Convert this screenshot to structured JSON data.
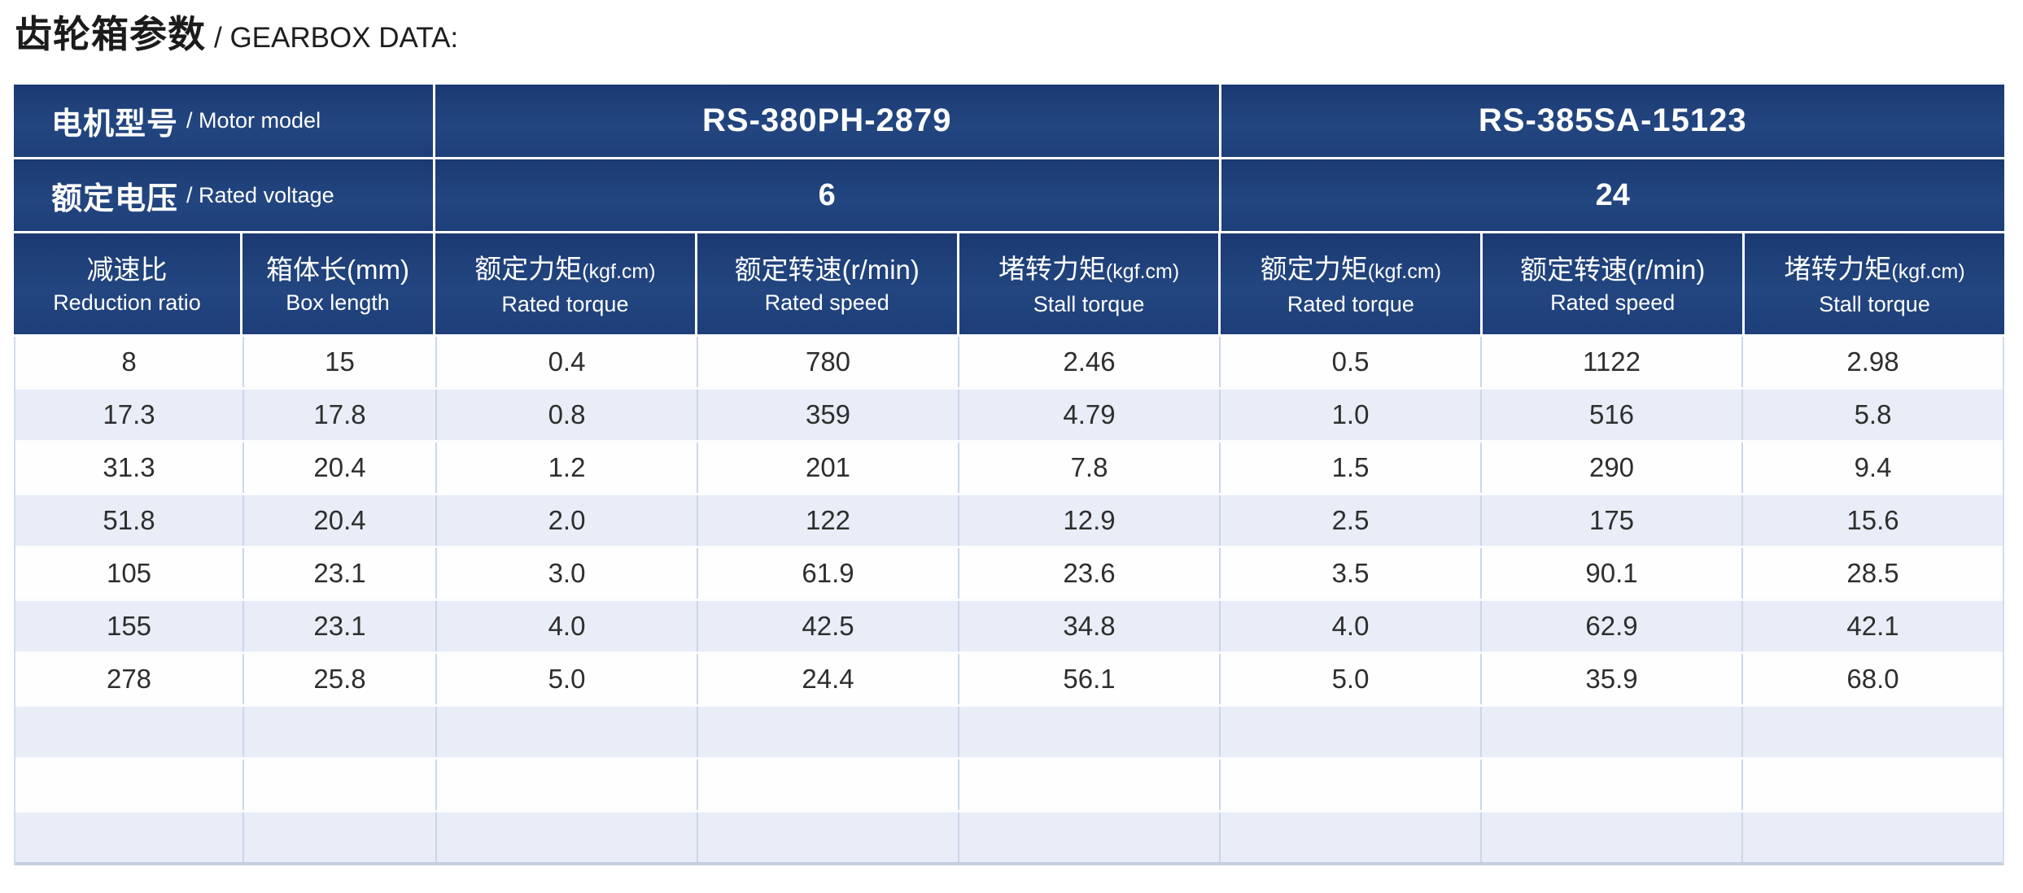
{
  "title": {
    "zh": "齿轮箱参数",
    "en": "/ GEARBOX DATA:"
  },
  "table": {
    "motor_row": {
      "label_zh": "电机型号",
      "label_en": "/ Motor model",
      "models": [
        "RS-380PH-2879",
        "RS-385SA-15123"
      ]
    },
    "voltage_row": {
      "label_zh": "额定电压",
      "label_en": "/ Rated voltage",
      "values": [
        "6",
        "24"
      ]
    },
    "columns": [
      {
        "zh": "减速比",
        "unit": "",
        "en": "Reduction ratio"
      },
      {
        "zh": "箱体长(mm)",
        "unit": "",
        "en": "Box length"
      },
      {
        "zh": "额定力矩",
        "unit": "(kgf.cm)",
        "en": "Rated torque"
      },
      {
        "zh": "额定转速(r/min)",
        "unit": "",
        "en": "Rated speed"
      },
      {
        "zh": "堵转力矩",
        "unit": "(kgf.cm)",
        "en": "Stall torque"
      },
      {
        "zh": "额定力矩",
        "unit": "(kgf.cm)",
        "en": "Rated torque"
      },
      {
        "zh": "额定转速(r/min)",
        "unit": "",
        "en": "Rated speed"
      },
      {
        "zh": "堵转力矩",
        "unit": "(kgf.cm)",
        "en": "Stall torque"
      }
    ],
    "rows": [
      [
        "8",
        "15",
        "0.4",
        "780",
        "2.46",
        "0.5",
        "1122",
        "2.98"
      ],
      [
        "17.3",
        "17.8",
        "0.8",
        "359",
        "4.79",
        "1.0",
        "516",
        "5.8"
      ],
      [
        "31.3",
        "20.4",
        "1.2",
        "201",
        "7.8",
        "1.5",
        "290",
        "9.4"
      ],
      [
        "51.8",
        "20.4",
        "2.0",
        "122",
        "12.9",
        "2.5",
        "175",
        "15.6"
      ],
      [
        "105",
        "23.1",
        "3.0",
        "61.9",
        "23.6",
        "3.5",
        "90.1",
        "28.5"
      ],
      [
        "155",
        "23.1",
        "4.0",
        "42.5",
        "34.8",
        "4.0",
        "62.9",
        "42.1"
      ],
      [
        "278",
        "25.8",
        "5.0",
        "24.4",
        "56.1",
        "5.0",
        "35.9",
        "68.0"
      ],
      [
        "",
        "",
        "",
        "",
        "",
        "",
        "",
        ""
      ],
      [
        "",
        "",
        "",
        "",
        "",
        "",
        "",
        ""
      ],
      [
        "",
        "",
        "",
        "",
        "",
        "",
        "",
        ""
      ]
    ]
  },
  "colors": {
    "header_navy": "#1d3e79",
    "row_alt": "#e8edf7",
    "divider": "#ccd6e9",
    "data_text": "#2e2e2e"
  },
  "chart_data": {
    "type": "table",
    "title": "齿轮箱参数 / GEARBOX DATA:",
    "groups": [
      {
        "motor_model": "RS-380PH-2879",
        "rated_voltage": 6,
        "rows": [
          {
            "reduction_ratio": 8,
            "box_length_mm": 15,
            "rated_torque_kgfcm": 0.4,
            "rated_speed_rpm": 780,
            "stall_torque_kgfcm": 2.46
          },
          {
            "reduction_ratio": 17.3,
            "box_length_mm": 17.8,
            "rated_torque_kgfcm": 0.8,
            "rated_speed_rpm": 359,
            "stall_torque_kgfcm": 4.79
          },
          {
            "reduction_ratio": 31.3,
            "box_length_mm": 20.4,
            "rated_torque_kgfcm": 1.2,
            "rated_speed_rpm": 201,
            "stall_torque_kgfcm": 7.8
          },
          {
            "reduction_ratio": 51.8,
            "box_length_mm": 20.4,
            "rated_torque_kgfcm": 2.0,
            "rated_speed_rpm": 122,
            "stall_torque_kgfcm": 12.9
          },
          {
            "reduction_ratio": 105,
            "box_length_mm": 23.1,
            "rated_torque_kgfcm": 3.0,
            "rated_speed_rpm": 61.9,
            "stall_torque_kgfcm": 23.6
          },
          {
            "reduction_ratio": 155,
            "box_length_mm": 23.1,
            "rated_torque_kgfcm": 4.0,
            "rated_speed_rpm": 42.5,
            "stall_torque_kgfcm": 34.8
          },
          {
            "reduction_ratio": 278,
            "box_length_mm": 25.8,
            "rated_torque_kgfcm": 5.0,
            "rated_speed_rpm": 24.4,
            "stall_torque_kgfcm": 56.1
          }
        ]
      },
      {
        "motor_model": "RS-385SA-15123",
        "rated_voltage": 24,
        "rows": [
          {
            "reduction_ratio": 8,
            "box_length_mm": 15,
            "rated_torque_kgfcm": 0.5,
            "rated_speed_rpm": 1122,
            "stall_torque_kgfcm": 2.98
          },
          {
            "reduction_ratio": 17.3,
            "box_length_mm": 17.8,
            "rated_torque_kgfcm": 1.0,
            "rated_speed_rpm": 516,
            "stall_torque_kgfcm": 5.8
          },
          {
            "reduction_ratio": 31.3,
            "box_length_mm": 20.4,
            "rated_torque_kgfcm": 1.5,
            "rated_speed_rpm": 290,
            "stall_torque_kgfcm": 9.4
          },
          {
            "reduction_ratio": 51.8,
            "box_length_mm": 20.4,
            "rated_torque_kgfcm": 2.5,
            "rated_speed_rpm": 175,
            "stall_torque_kgfcm": 15.6
          },
          {
            "reduction_ratio": 105,
            "box_length_mm": 23.1,
            "rated_torque_kgfcm": 3.5,
            "rated_speed_rpm": 90.1,
            "stall_torque_kgfcm": 28.5
          },
          {
            "reduction_ratio": 155,
            "box_length_mm": 23.1,
            "rated_torque_kgfcm": 4.0,
            "rated_speed_rpm": 62.9,
            "stall_torque_kgfcm": 42.1
          },
          {
            "reduction_ratio": 278,
            "box_length_mm": 25.8,
            "rated_torque_kgfcm": 5.0,
            "rated_speed_rpm": 35.9,
            "stall_torque_kgfcm": 68.0
          }
        ]
      }
    ]
  }
}
